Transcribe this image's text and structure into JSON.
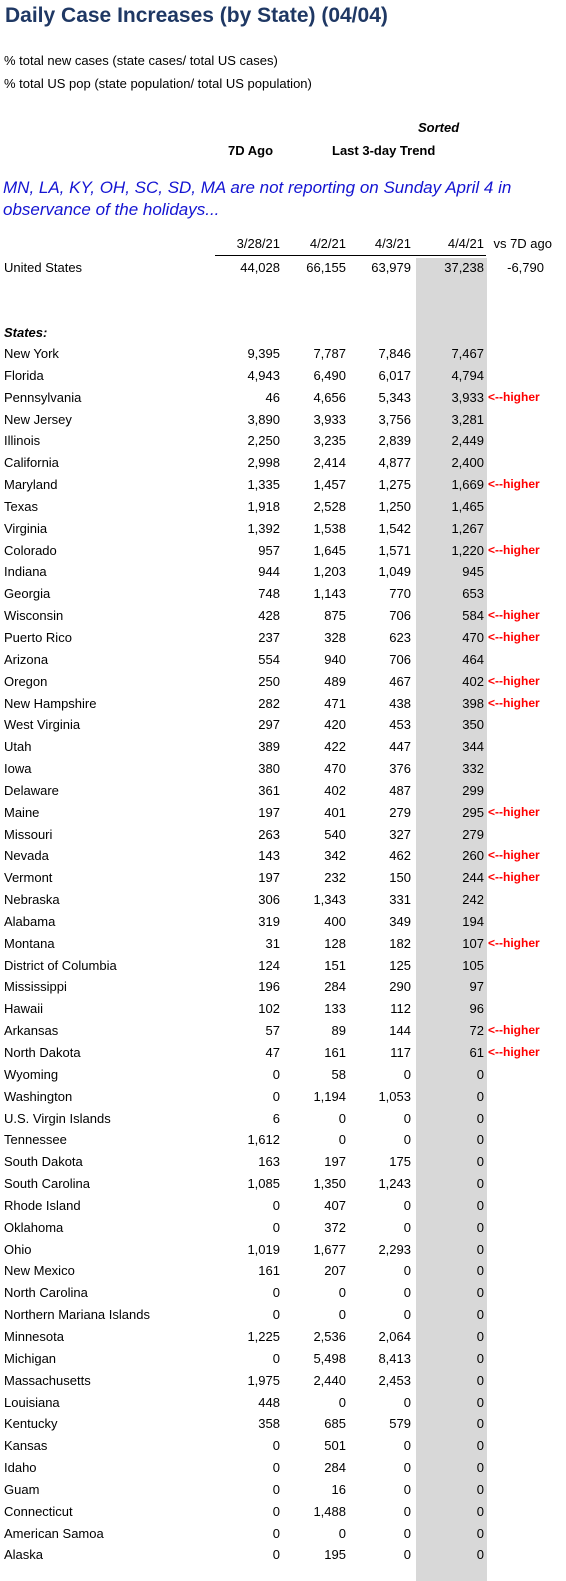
{
  "title": "Daily Case Increases (by State) (04/04)",
  "notes": [
    "% total new cases (state cases/ total US cases)",
    "% total US pop (state population/ total US population)"
  ],
  "headers": {
    "sorted": "Sorted",
    "ago": "7D Ago",
    "trend": "Last 3-day Trend"
  },
  "notice": "MN, LA, KY, OH, SC, SD, MA are not reporting  on Sunday April 4 in observance  of the holidays...",
  "columns": [
    "3/28/21",
    "4/2/21",
    "4/3/21",
    "4/4/21",
    "vs 7D ago"
  ],
  "us": {
    "name": "United States",
    "values": [
      "44,028",
      "66,155",
      "63,979",
      "37,238",
      "-6,790"
    ]
  },
  "states_label": "States:",
  "flag_text": "<--higher",
  "rows": [
    {
      "name": "New York",
      "v": [
        "9,395",
        "7,787",
        "7,846",
        "7,467"
      ],
      "flag": ""
    },
    {
      "name": "Florida",
      "v": [
        "4,943",
        "6,490",
        "6,017",
        "4,794"
      ],
      "flag": ""
    },
    {
      "name": "Pennsylvania",
      "v": [
        "46",
        "4,656",
        "5,343",
        "3,933"
      ],
      "flag": "<--higher"
    },
    {
      "name": "New Jersey",
      "v": [
        "3,890",
        "3,933",
        "3,756",
        "3,281"
      ],
      "flag": ""
    },
    {
      "name": "Illinois",
      "v": [
        "2,250",
        "3,235",
        "2,839",
        "2,449"
      ],
      "flag": ""
    },
    {
      "name": "California",
      "v": [
        "2,998",
        "2,414",
        "4,877",
        "2,400"
      ],
      "flag": ""
    },
    {
      "name": "Maryland",
      "v": [
        "1,335",
        "1,457",
        "1,275",
        "1,669"
      ],
      "flag": "<--higher"
    },
    {
      "name": "Texas",
      "v": [
        "1,918",
        "2,528",
        "1,250",
        "1,465"
      ],
      "flag": ""
    },
    {
      "name": "Virginia",
      "v": [
        "1,392",
        "1,538",
        "1,542",
        "1,267"
      ],
      "flag": ""
    },
    {
      "name": "Colorado",
      "v": [
        "957",
        "1,645",
        "1,571",
        "1,220"
      ],
      "flag": "<--higher"
    },
    {
      "name": "Indiana",
      "v": [
        "944",
        "1,203",
        "1,049",
        "945"
      ],
      "flag": ""
    },
    {
      "name": "Georgia",
      "v": [
        "748",
        "1,143",
        "770",
        "653"
      ],
      "flag": ""
    },
    {
      "name": "Wisconsin",
      "v": [
        "428",
        "875",
        "706",
        "584"
      ],
      "flag": "<--higher"
    },
    {
      "name": "Puerto Rico",
      "v": [
        "237",
        "328",
        "623",
        "470"
      ],
      "flag": "<--higher"
    },
    {
      "name": "Arizona",
      "v": [
        "554",
        "940",
        "706",
        "464"
      ],
      "flag": ""
    },
    {
      "name": "Oregon",
      "v": [
        "250",
        "489",
        "467",
        "402"
      ],
      "flag": "<--higher"
    },
    {
      "name": "New Hampshire",
      "v": [
        "282",
        "471",
        "438",
        "398"
      ],
      "flag": "<--higher"
    },
    {
      "name": "West Virginia",
      "v": [
        "297",
        "420",
        "453",
        "350"
      ],
      "flag": ""
    },
    {
      "name": "Utah",
      "v": [
        "389",
        "422",
        "447",
        "344"
      ],
      "flag": ""
    },
    {
      "name": "Iowa",
      "v": [
        "380",
        "470",
        "376",
        "332"
      ],
      "flag": ""
    },
    {
      "name": "Delaware",
      "v": [
        "361",
        "402",
        "487",
        "299"
      ],
      "flag": ""
    },
    {
      "name": "Maine",
      "v": [
        "197",
        "401",
        "279",
        "295"
      ],
      "flag": "<--higher"
    },
    {
      "name": "Missouri",
      "v": [
        "263",
        "540",
        "327",
        "279"
      ],
      "flag": ""
    },
    {
      "name": "Nevada",
      "v": [
        "143",
        "342",
        "462",
        "260"
      ],
      "flag": "<--higher"
    },
    {
      "name": "Vermont",
      "v": [
        "197",
        "232",
        "150",
        "244"
      ],
      "flag": "<--higher"
    },
    {
      "name": "Nebraska",
      "v": [
        "306",
        "1,343",
        "331",
        "242"
      ],
      "flag": ""
    },
    {
      "name": "Alabama",
      "v": [
        "319",
        "400",
        "349",
        "194"
      ],
      "flag": ""
    },
    {
      "name": "Montana",
      "v": [
        "31",
        "128",
        "182",
        "107"
      ],
      "flag": "<--higher"
    },
    {
      "name": "District of Columbia",
      "v": [
        "124",
        "151",
        "125",
        "105"
      ],
      "flag": ""
    },
    {
      "name": "Mississippi",
      "v": [
        "196",
        "284",
        "290",
        "97"
      ],
      "flag": ""
    },
    {
      "name": "Hawaii",
      "v": [
        "102",
        "133",
        "112",
        "96"
      ],
      "flag": ""
    },
    {
      "name": "Arkansas",
      "v": [
        "57",
        "89",
        "144",
        "72"
      ],
      "flag": "<--higher"
    },
    {
      "name": "North Dakota",
      "v": [
        "47",
        "161",
        "117",
        "61"
      ],
      "flag": "<--higher"
    },
    {
      "name": "Wyoming",
      "v": [
        "0",
        "58",
        "0",
        "0"
      ],
      "flag": ""
    },
    {
      "name": "Washington",
      "v": [
        "0",
        "1,194",
        "1,053",
        "0"
      ],
      "flag": ""
    },
    {
      "name": "U.S. Virgin Islands",
      "v": [
        "6",
        "0",
        "0",
        "0"
      ],
      "flag": ""
    },
    {
      "name": "Tennessee",
      "v": [
        "1,612",
        "0",
        "0",
        "0"
      ],
      "flag": ""
    },
    {
      "name": "South Dakota",
      "v": [
        "163",
        "197",
        "175",
        "0"
      ],
      "flag": ""
    },
    {
      "name": "South Carolina",
      "v": [
        "1,085",
        "1,350",
        "1,243",
        "0"
      ],
      "flag": ""
    },
    {
      "name": "Rhode Island",
      "v": [
        "0",
        "407",
        "0",
        "0"
      ],
      "flag": ""
    },
    {
      "name": "Oklahoma",
      "v": [
        "0",
        "372",
        "0",
        "0"
      ],
      "flag": ""
    },
    {
      "name": "Ohio",
      "v": [
        "1,019",
        "1,677",
        "2,293",
        "0"
      ],
      "flag": ""
    },
    {
      "name": "New Mexico",
      "v": [
        "161",
        "207",
        "0",
        "0"
      ],
      "flag": ""
    },
    {
      "name": "North Carolina",
      "v": [
        "0",
        "0",
        "0",
        "0"
      ],
      "flag": ""
    },
    {
      "name": "Northern Mariana Islands",
      "v": [
        "0",
        "0",
        "0",
        "0"
      ],
      "flag": ""
    },
    {
      "name": "Minnesota",
      "v": [
        "1,225",
        "2,536",
        "2,064",
        "0"
      ],
      "flag": ""
    },
    {
      "name": "Michigan",
      "v": [
        "0",
        "5,498",
        "8,413",
        "0"
      ],
      "flag": ""
    },
    {
      "name": "Massachusetts",
      "v": [
        "1,975",
        "2,440",
        "2,453",
        "0"
      ],
      "flag": ""
    },
    {
      "name": "Louisiana",
      "v": [
        "448",
        "0",
        "0",
        "0"
      ],
      "flag": ""
    },
    {
      "name": "Kentucky",
      "v": [
        "358",
        "685",
        "579",
        "0"
      ],
      "flag": ""
    },
    {
      "name": "Kansas",
      "v": [
        "0",
        "501",
        "0",
        "0"
      ],
      "flag": ""
    },
    {
      "name": "Idaho",
      "v": [
        "0",
        "284",
        "0",
        "0"
      ],
      "flag": ""
    },
    {
      "name": "Guam",
      "v": [
        "0",
        "16",
        "0",
        "0"
      ],
      "flag": ""
    },
    {
      "name": "Connecticut",
      "v": [
        "0",
        "1,488",
        "0",
        "0"
      ],
      "flag": ""
    },
    {
      "name": "American Samoa",
      "v": [
        "0",
        "0",
        "0",
        "0"
      ],
      "flag": ""
    },
    {
      "name": "Alaska",
      "v": [
        "0",
        "195",
        "0",
        "0"
      ],
      "flag": ""
    }
  ]
}
